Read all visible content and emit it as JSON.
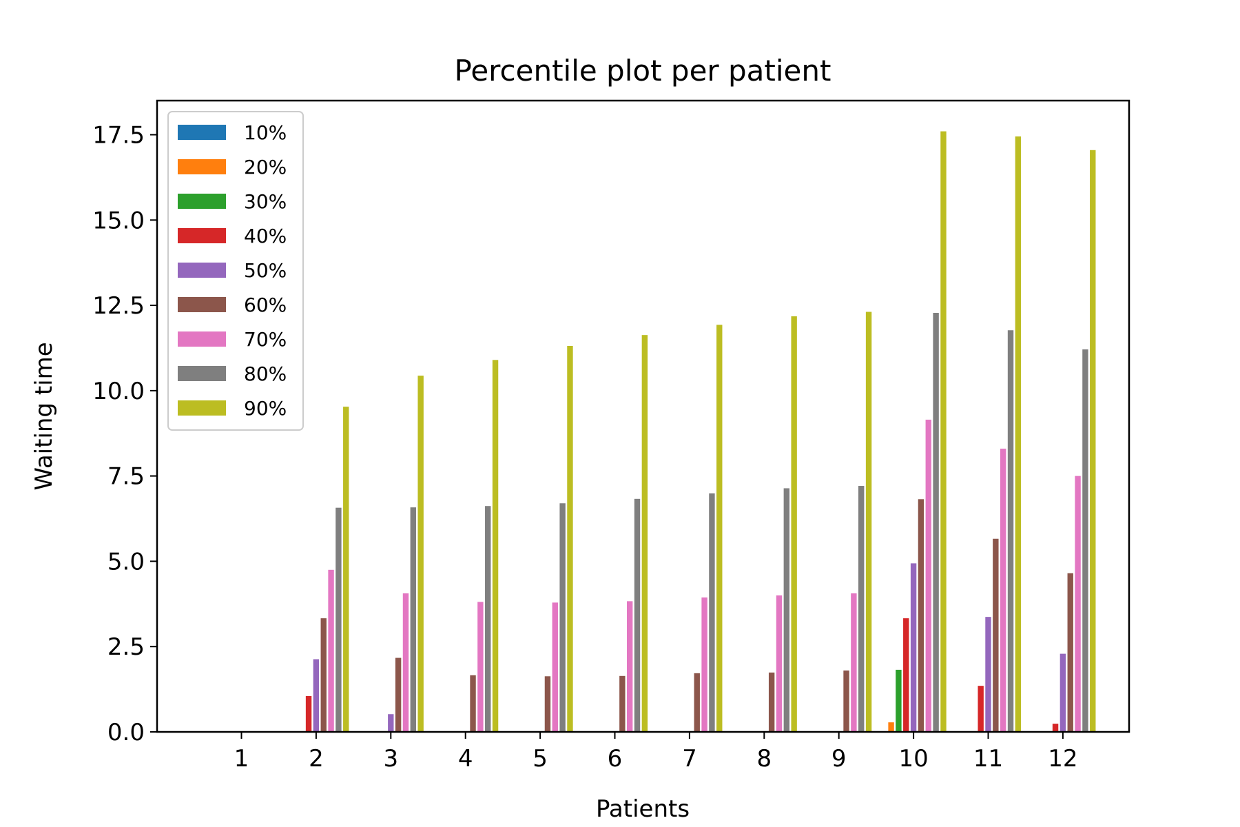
{
  "chart_data": {
    "type": "bar",
    "title": "Percentile plot per patient",
    "xlabel": "Patients",
    "ylabel": "Waiting time",
    "categories": [
      "1",
      "2",
      "3",
      "4",
      "5",
      "6",
      "7",
      "8",
      "9",
      "10",
      "11",
      "12"
    ],
    "ylim": [
      0,
      18.5
    ],
    "yticks": [
      "0.0",
      "2.5",
      "5.0",
      "7.5",
      "10.0",
      "12.5",
      "15.0",
      "17.5"
    ],
    "legend_position": "top-left",
    "grid": false,
    "series": [
      {
        "name": "10%",
        "color": "#1f77b4",
        "values": [
          0,
          0,
          0,
          0,
          0,
          0,
          0,
          0,
          0,
          0,
          0,
          0
        ]
      },
      {
        "name": "20%",
        "color": "#ff7f0e",
        "values": [
          0,
          0,
          0,
          0,
          0,
          0,
          0,
          0,
          0,
          0.28,
          0,
          0
        ]
      },
      {
        "name": "30%",
        "color": "#2ca02c",
        "values": [
          0,
          0,
          0,
          0,
          0,
          0,
          0,
          0,
          0,
          1.82,
          0,
          0
        ]
      },
      {
        "name": "40%",
        "color": "#d62728",
        "values": [
          0,
          1.05,
          0,
          0,
          0,
          0,
          0,
          0,
          0,
          3.33,
          1.35,
          0.24
        ]
      },
      {
        "name": "50%",
        "color": "#9467bd",
        "values": [
          0,
          2.13,
          0.52,
          0,
          0,
          0,
          0,
          0,
          0,
          4.94,
          3.37,
          2.29
        ]
      },
      {
        "name": "60%",
        "color": "#8c564b",
        "values": [
          0,
          3.33,
          2.17,
          1.66,
          1.63,
          1.64,
          1.72,
          1.74,
          1.8,
          6.82,
          5.66,
          4.65
        ]
      },
      {
        "name": "70%",
        "color": "#e377c2",
        "values": [
          0,
          4.75,
          4.06,
          3.81,
          3.79,
          3.83,
          3.94,
          4.0,
          4.06,
          9.15,
          8.3,
          7.5
        ]
      },
      {
        "name": "80%",
        "color": "#7f7f7f",
        "values": [
          0,
          6.57,
          6.58,
          6.62,
          6.7,
          6.83,
          6.99,
          7.14,
          7.21,
          12.28,
          11.77,
          11.21
        ]
      },
      {
        "name": "90%",
        "color": "#bcbd22",
        "values": [
          0,
          9.53,
          10.44,
          10.9,
          11.31,
          11.63,
          11.93,
          12.18,
          12.31,
          17.6,
          17.45,
          17.05
        ]
      }
    ]
  }
}
